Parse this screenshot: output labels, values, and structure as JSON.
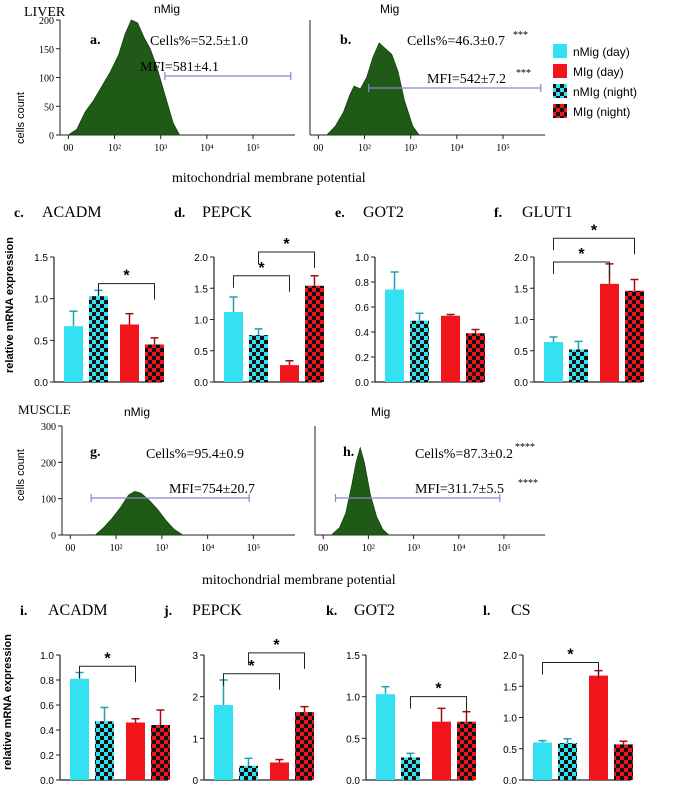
{
  "colors": {
    "cyan": "#33E1F0",
    "red": "#F2141B",
    "dark_cyan": "#1AA2AF",
    "dark_red": "#7A0A0E",
    "histogram": "#1F5A17",
    "bracket_line": "#8888CC"
  },
  "legend": {
    "placement": "right",
    "entries": [
      {
        "label": "nMig (day)",
        "pattern": "solid",
        "color": "cyan"
      },
      {
        "label": "MIg (day)",
        "pattern": "solid",
        "color": "red"
      },
      {
        "label": "nMIg (night)",
        "pattern": "checker",
        "color": "cyan"
      },
      {
        "label": "MIg (night)",
        "pattern": "checker",
        "color": "red"
      }
    ]
  },
  "sections": {
    "liver": "LIVER",
    "muscle": "MUSCLE",
    "flow_xlabel": "mitochondrial membrane potential",
    "flow_ylabel": "cells count",
    "bar_ylabel": "relative mRNA expression"
  },
  "chart_data": [
    {
      "id": "a",
      "type": "histogram",
      "letter": "a.",
      "group": "nMig",
      "cells_label": "Cells%=52.5±1.0",
      "cells_sig": "",
      "mfi_label": "MFI=581±4.1",
      "mfi_sig": "",
      "ylim": [
        0,
        200
      ],
      "yticks": [
        "0",
        "50",
        "100",
        "150",
        "200"
      ],
      "xticks": [
        "00",
        "10²",
        "10³",
        "10⁴",
        "10⁵"
      ],
      "gate": [
        2.5,
        5.5
      ],
      "shape": [
        [
          0.2,
          0
        ],
        [
          0.4,
          10
        ],
        [
          0.6,
          40
        ],
        [
          0.8,
          60
        ],
        [
          1.0,
          85
        ],
        [
          1.2,
          110
        ],
        [
          1.4,
          140
        ],
        [
          1.55,
          175
        ],
        [
          1.7,
          200
        ],
        [
          1.85,
          195
        ],
        [
          2.0,
          170
        ],
        [
          2.15,
          150
        ],
        [
          2.3,
          120
        ],
        [
          2.5,
          70
        ],
        [
          2.7,
          20
        ],
        [
          2.85,
          0
        ]
      ]
    },
    {
      "id": "b",
      "type": "histogram",
      "letter": "b.",
      "group": "Mig",
      "cells_label": "Cells%=46.3±0.7",
      "cells_sig": "***",
      "mfi_label": "MFI=542±7.2",
      "mfi_sig": "***",
      "ylim": [
        0,
        200
      ],
      "yticks": [],
      "xticks": [
        "00",
        "10²",
        "10³",
        "10⁴",
        "10⁵"
      ],
      "gate": [
        1.4,
        5.5
      ],
      "shape": [
        [
          0.4,
          0
        ],
        [
          0.6,
          15
        ],
        [
          0.8,
          40
        ],
        [
          0.95,
          70
        ],
        [
          1.05,
          85
        ],
        [
          1.2,
          80
        ],
        [
          1.35,
          100
        ],
        [
          1.5,
          135
        ],
        [
          1.65,
          160
        ],
        [
          1.8,
          150
        ],
        [
          1.95,
          140
        ],
        [
          2.1,
          110
        ],
        [
          2.25,
          60
        ],
        [
          2.45,
          15
        ],
        [
          2.6,
          0
        ]
      ]
    },
    {
      "id": "c",
      "type": "bar",
      "letter": "c.",
      "title": "ACADM",
      "ylim": [
        0,
        1.5
      ],
      "yticks": [
        "0.0",
        "0.5",
        "1.0",
        "1.5"
      ],
      "values": [
        0.67,
        1.03,
        0.69,
        0.45
      ],
      "errors": [
        0.18,
        0.07,
        0.13,
        0.08
      ],
      "sig": [
        {
          "from": 1,
          "to": 3,
          "y": 1.18,
          "label": "*"
        }
      ]
    },
    {
      "id": "d",
      "type": "bar",
      "letter": "d.",
      "title": "PEPCK",
      "ylim": [
        0,
        2.0
      ],
      "yticks": [
        "0.0",
        "0.5",
        "1.0",
        "1.5",
        "2.0"
      ],
      "values": [
        1.12,
        0.75,
        0.27,
        1.54
      ],
      "errors": [
        0.24,
        0.1,
        0.07,
        0.16
      ],
      "sig": [
        {
          "from": 0,
          "to": 2,
          "y": 1.7,
          "label": "*"
        },
        {
          "from": 1,
          "to": 3,
          "y": 2.08,
          "label": "*"
        }
      ]
    },
    {
      "id": "e",
      "type": "bar",
      "letter": "e.",
      "title": "GOT2",
      "ylim": [
        0,
        1.0
      ],
      "yticks": [
        "0.0",
        "0.2",
        "0.4",
        "0.6",
        "0.8",
        "1.0"
      ],
      "values": [
        0.74,
        0.49,
        0.53,
        0.39
      ],
      "errors": [
        0.14,
        0.06,
        0.01,
        0.03
      ],
      "sig": []
    },
    {
      "id": "f",
      "type": "bar",
      "letter": "f.",
      "title": "GLUT1",
      "ylim": [
        0,
        2.0
      ],
      "yticks": [
        "0.0",
        "0.5",
        "1.0",
        "1.5",
        "2.0"
      ],
      "values": [
        0.64,
        0.52,
        1.57,
        1.46
      ],
      "errors": [
        0.08,
        0.13,
        0.32,
        0.18
      ],
      "sig": [
        {
          "from": 0,
          "to": 2,
          "y": 1.92,
          "label": "*"
        },
        {
          "from": 0,
          "to": 3,
          "y": 2.3,
          "label": "*"
        }
      ]
    },
    {
      "id": "g",
      "type": "histogram",
      "letter": "g.",
      "group": "nMig",
      "cells_label": "Cells%=95.4±0.9",
      "cells_sig": "",
      "mfi_label": "MFI=754±20.7",
      "mfi_sig": "",
      "ylim": [
        0,
        300
      ],
      "yticks": [
        "0",
        "100",
        "200",
        "300"
      ],
      "xticks": [
        "00",
        "10²",
        "10³",
        "10⁴",
        "10⁵"
      ],
      "gate": [
        0.7,
        4.5
      ],
      "shape": [
        [
          0.8,
          0
        ],
        [
          1.0,
          20
        ],
        [
          1.2,
          45
        ],
        [
          1.4,
          75
        ],
        [
          1.6,
          110
        ],
        [
          1.75,
          120
        ],
        [
          1.9,
          115
        ],
        [
          2.1,
          95
        ],
        [
          2.3,
          70
        ],
        [
          2.5,
          40
        ],
        [
          2.7,
          15
        ],
        [
          2.9,
          0
        ]
      ]
    },
    {
      "id": "h",
      "type": "histogram",
      "letter": "h.",
      "group": "Mig",
      "cells_label": "Cells%=87.3±0.2",
      "cells_sig": "****",
      "mfi_label": "MFI=311.7±5.5",
      "mfi_sig": "****",
      "ylim": [
        0,
        300
      ],
      "yticks": [],
      "xticks": [
        "00",
        "10²",
        "10³",
        "10⁴",
        "10⁵"
      ],
      "gate": [
        0.5,
        4.5
      ],
      "shape": [
        [
          0.4,
          0
        ],
        [
          0.6,
          20
        ],
        [
          0.75,
          60
        ],
        [
          0.9,
          140
        ],
        [
          1.0,
          200
        ],
        [
          1.1,
          240
        ],
        [
          1.2,
          200
        ],
        [
          1.35,
          110
        ],
        [
          1.5,
          50
        ],
        [
          1.65,
          15
        ],
        [
          1.8,
          0
        ]
      ]
    },
    {
      "id": "i",
      "type": "bar",
      "letter": "i.",
      "title": "ACADM",
      "ylim": [
        0,
        1.0
      ],
      "yticks": [
        "0.0",
        "0.2",
        "0.4",
        "0.6",
        "0.8",
        "1.0"
      ],
      "values": [
        0.81,
        0.47,
        0.46,
        0.44
      ],
      "errors": [
        0.05,
        0.11,
        0.03,
        0.12
      ],
      "sig": [
        {
          "from": 0,
          "to": 2,
          "y": 0.91,
          "label": "*"
        }
      ]
    },
    {
      "id": "j",
      "type": "bar",
      "letter": "j.",
      "title": "PEPCK",
      "ylim": [
        0,
        3.0
      ],
      "yticks": [
        "0",
        "1",
        "2",
        "3"
      ],
      "values": [
        1.8,
        0.34,
        0.42,
        1.63
      ],
      "errors": [
        0.6,
        0.18,
        0.07,
        0.13
      ],
      "sig": [
        {
          "from": 0,
          "to": 2,
          "y": 2.55,
          "label": "*"
        },
        {
          "from": 1,
          "to": 3,
          "y": 3.05,
          "label": "*"
        }
      ]
    },
    {
      "id": "k",
      "type": "bar",
      "letter": "k.",
      "title": "GOT2",
      "ylim": [
        0,
        1.5
      ],
      "yticks": [
        "0.0",
        "0.5",
        "1.0",
        "1.5"
      ],
      "values": [
        1.03,
        0.27,
        0.7,
        0.7
      ],
      "errors": [
        0.09,
        0.05,
        0.16,
        0.12
      ],
      "sig": [
        {
          "from": 1,
          "to": 3,
          "y": 1.0,
          "label": "*"
        }
      ]
    },
    {
      "id": "l",
      "type": "bar",
      "letter": "l.",
      "title": "CS",
      "ylim": [
        0,
        2.0
      ],
      "yticks": [
        "0.0",
        "0.5",
        "1.0",
        "1.5",
        "2.0"
      ],
      "values": [
        0.6,
        0.59,
        1.67,
        0.57
      ],
      "errors": [
        0.03,
        0.07,
        0.08,
        0.05
      ],
      "sig": [
        {
          "from": 0,
          "to": 2,
          "y": 1.88,
          "label": "*"
        }
      ]
    }
  ]
}
